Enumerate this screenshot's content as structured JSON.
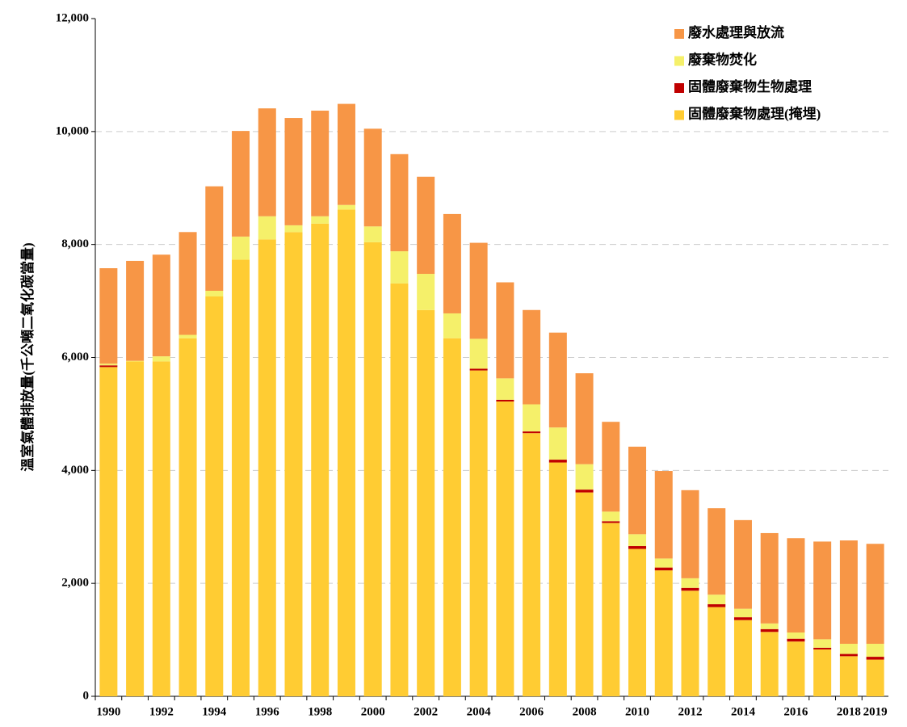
{
  "chart_data": {
    "type": "stacked-bar",
    "y_label": "溫室氣體排放量(千公噸二氧化碳當量)",
    "categories": [
      "1990",
      null,
      "1992",
      null,
      "1994",
      null,
      "1996",
      null,
      "1998",
      null,
      "2000",
      null,
      "2002",
      null,
      "2004",
      null,
      "2006",
      null,
      "2008",
      null,
      "2010",
      null,
      "2012",
      null,
      "2014",
      null,
      "2016",
      null,
      "2018",
      "2019"
    ],
    "series": [
      {
        "name": "固體廢棄物處理(掩埋)",
        "color": "#ffcc33",
        "values": [
          5830,
          5930,
          5930,
          6340,
          7080,
          7730,
          8090,
          8220,
          8370,
          8620,
          8040,
          7310,
          6840,
          6340,
          5770,
          5220,
          4660,
          4140,
          3610,
          3070,
          2610,
          2230,
          1870,
          1580,
          1350,
          1140,
          970,
          830,
          710,
          650
        ]
      },
      {
        "name": "固體廢棄物生物處理",
        "color": "#c00000",
        "values": [
          30,
          0,
          0,
          0,
          0,
          0,
          0,
          0,
          0,
          0,
          0,
          0,
          0,
          0,
          30,
          30,
          30,
          50,
          50,
          30,
          50,
          50,
          50,
          50,
          50,
          50,
          50,
          30,
          40,
          50
        ]
      },
      {
        "name": "廢棄物焚化",
        "color": "#f5f06a",
        "values": [
          30,
          10,
          90,
          60,
          100,
          410,
          410,
          120,
          130,
          80,
          280,
          570,
          640,
          440,
          530,
          380,
          480,
          570,
          450,
          170,
          210,
          160,
          170,
          170,
          150,
          100,
          110,
          150,
          180,
          230
        ]
      },
      {
        "name": "廢水處理與放流",
        "color": "#f79646",
        "values": [
          1690,
          1770,
          1800,
          1820,
          1850,
          1870,
          1910,
          1900,
          1870,
          1790,
          1730,
          1720,
          1720,
          1760,
          1700,
          1700,
          1670,
          1680,
          1610,
          1590,
          1550,
          1550,
          1560,
          1530,
          1570,
          1600,
          1670,
          1730,
          1830,
          1770
        ]
      }
    ],
    "ylim": [
      0,
      12000
    ],
    "yticks": [
      0,
      {
        "value": 2000,
        "label": "2,000"
      },
      {
        "value": 4000,
        "label": "4,000"
      },
      {
        "value": 6000,
        "label": "6,000"
      },
      {
        "value": 8000,
        "label": "8,000"
      },
      {
        "value": 10000,
        "label": "10,000"
      },
      {
        "value": 12000,
        "label": "12,000"
      }
    ],
    "grid": true,
    "legend": "top-right"
  }
}
